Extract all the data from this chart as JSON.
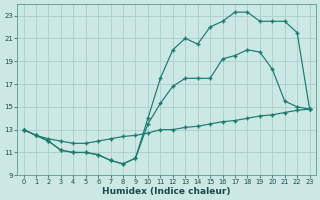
{
  "title": "",
  "xlabel": "Humidex (Indice chaleur)",
  "ylabel": "",
  "background_color": "#cce8e4",
  "grid_color": "#aacece",
  "line_color": "#1a7a6e",
  "xlim": [
    -0.5,
    23.5
  ],
  "ylim": [
    9,
    24
  ],
  "xticks": [
    0,
    1,
    2,
    3,
    4,
    5,
    6,
    7,
    8,
    9,
    10,
    11,
    12,
    13,
    14,
    15,
    16,
    17,
    18,
    19,
    20,
    21,
    22,
    23
  ],
  "yticks": [
    9,
    11,
    13,
    15,
    17,
    19,
    21,
    23
  ],
  "line1_x": [
    0,
    1,
    2,
    3,
    4,
    5,
    6,
    7,
    8,
    9,
    10,
    11,
    12,
    13,
    14,
    15,
    16,
    17,
    18,
    19,
    20,
    21,
    22,
    23
  ],
  "line1_y": [
    13,
    12.5,
    12.2,
    12.0,
    11.8,
    11.8,
    12.0,
    12.2,
    12.4,
    12.5,
    12.7,
    13.0,
    13.0,
    13.2,
    13.3,
    13.5,
    13.7,
    13.8,
    14.0,
    14.2,
    14.3,
    14.5,
    14.7,
    14.8
  ],
  "line2_x": [
    0,
    1,
    2,
    3,
    4,
    5,
    6,
    7,
    8,
    9,
    10,
    11,
    12,
    13,
    14,
    15,
    16,
    17,
    18,
    19,
    20,
    21,
    22,
    23
  ],
  "line2_y": [
    13,
    12.5,
    12.0,
    11.2,
    11.0,
    11.0,
    10.8,
    10.3,
    10.0,
    10.5,
    13.5,
    15.3,
    16.8,
    17.5,
    17.5,
    17.5,
    19.2,
    19.5,
    20.0,
    19.8,
    18.3,
    15.5,
    15.0,
    14.8
  ],
  "line3_x": [
    0,
    1,
    2,
    3,
    4,
    5,
    6,
    7,
    8,
    9,
    10,
    11,
    12,
    13,
    14,
    15,
    16,
    17,
    18,
    19,
    20,
    21,
    22,
    23
  ],
  "line3_y": [
    13,
    12.5,
    12.0,
    11.2,
    11.0,
    11.0,
    10.8,
    10.3,
    10.0,
    10.5,
    14.0,
    17.5,
    20.0,
    21.0,
    20.5,
    22.0,
    22.5,
    23.3,
    23.3,
    22.5,
    22.5,
    22.5,
    21.5,
    14.8
  ]
}
